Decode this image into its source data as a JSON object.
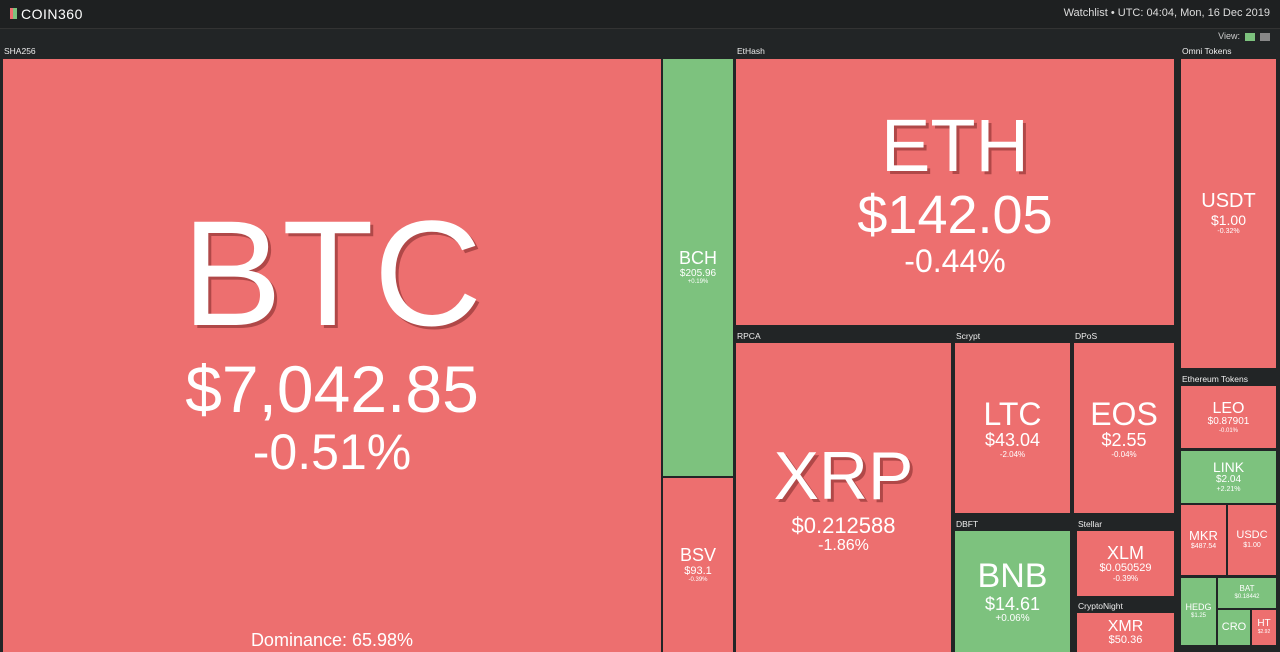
{
  "header": {
    "logo": "COIN360",
    "watchlist": "Watchlist",
    "time": "UTC: 04:04, Mon, 16 Dec 2019",
    "view": "View:"
  },
  "groups": [
    "SHA256",
    "EtHash",
    "RPCA",
    "Scrypt",
    "DPoS",
    "DBFT",
    "Stellar",
    "CryptoNight",
    "Omni Tokens",
    "Ethereum Tokens"
  ],
  "dominance": "Dominance: 65.98%",
  "coins": [
    {
      "symbol": "BTC",
      "price": "$7,042.85",
      "change": "-0.51%"
    },
    {
      "symbol": "BCH",
      "price": "$205.96",
      "change": "+0.19%"
    },
    {
      "symbol": "BSV",
      "price": "$93.1",
      "change": "-0.39%"
    },
    {
      "symbol": "ETH",
      "price": "$142.05",
      "change": "-0.44%"
    },
    {
      "symbol": "XRP",
      "price": "$0.212588",
      "change": "-1.86%"
    },
    {
      "symbol": "LTC",
      "price": "$43.04",
      "change": "-2.04%"
    },
    {
      "symbol": "EOS",
      "price": "$2.55",
      "change": "-0.04%"
    },
    {
      "symbol": "BNB",
      "price": "$14.61",
      "change": "+0.06%"
    },
    {
      "symbol": "XLM",
      "price": "$0.050529",
      "change": "-0.39%"
    },
    {
      "symbol": "XMR",
      "price": "$50.36"
    },
    {
      "symbol": "USDT",
      "price": "$1.00",
      "change": "-0.32%"
    },
    {
      "symbol": "LEO",
      "price": "$0.87901",
      "change": "-0.01%"
    },
    {
      "symbol": "LINK",
      "price": "$2.04",
      "change": "+2.21%"
    },
    {
      "symbol": "MKR",
      "price": "$487.54"
    },
    {
      "symbol": "USDC",
      "price": "$1.00"
    },
    {
      "symbol": "HEDG",
      "price": "$1.25"
    },
    {
      "symbol": "BAT",
      "price": "$0.18442"
    },
    {
      "symbol": "CRO"
    },
    {
      "symbol": "HT",
      "price": "$2.92"
    }
  ]
}
